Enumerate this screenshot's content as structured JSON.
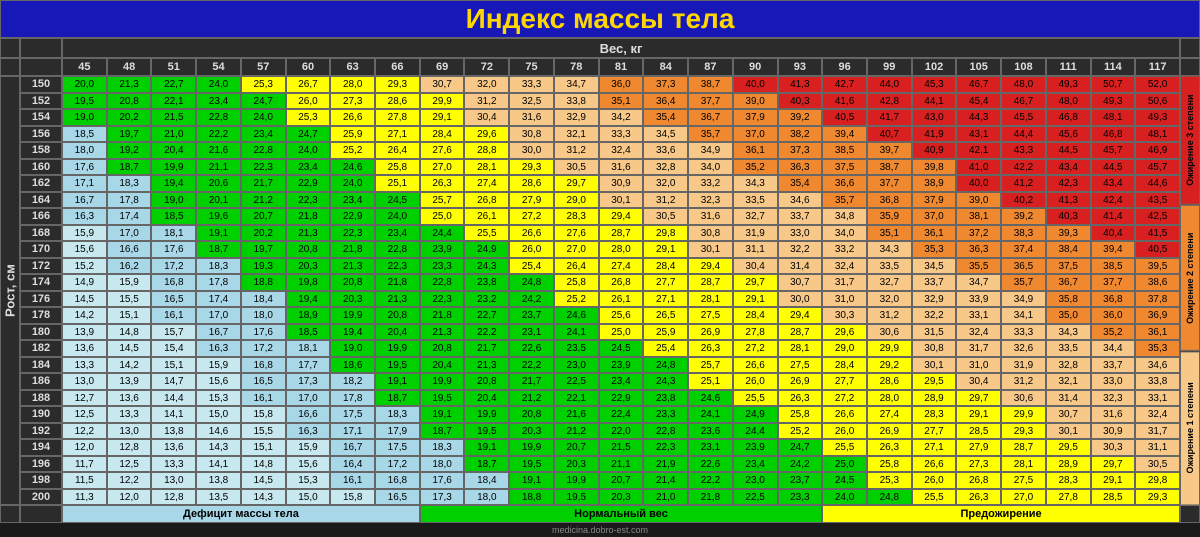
{
  "title": "Индекс массы тела",
  "xaxis_label": "Вес, кг",
  "yaxis_label": "Рост, см",
  "footer": "medicina.dobro-est.com",
  "weights": [
    45,
    48,
    51,
    54,
    57,
    60,
    63,
    66,
    69,
    72,
    75,
    78,
    81,
    84,
    87,
    90,
    93,
    96,
    99,
    102,
    105,
    108,
    111,
    114,
    117
  ],
  "heights": [
    150,
    152,
    154,
    156,
    158,
    160,
    162,
    164,
    166,
    168,
    170,
    172,
    174,
    176,
    178,
    180,
    182,
    184,
    186,
    188,
    190,
    192,
    194,
    196,
    198,
    200
  ],
  "legend": {
    "deficit": "Дефицит массы тела",
    "normal": "Нормальный вес",
    "pre": "Предожирение"
  },
  "side_labels": {
    "ob3": "Ожирение 3 степени",
    "ob2": "Ожирение 2 степени",
    "ob1": "Ожирение 1 степени"
  },
  "colors": {
    "deficit_lt": "#c8e8f0",
    "deficit": "#a8d8e8",
    "normal": "#00d000",
    "pre": "#ffff00",
    "ob1": "#f8c888",
    "ob2": "#f08830",
    "ob3": "#d82020"
  },
  "thresholds": {
    "deficit_lt": 16,
    "deficit": 18.5,
    "normal": 25,
    "pre": 30,
    "ob1": 35,
    "ob2": 40
  },
  "legend_colors": {
    "deficit": "#a8d8e8",
    "normal": "#00d000",
    "pre": "#ffff00"
  },
  "side_colors": {
    "ob1": "#f8c888",
    "ob2": "#f08830",
    "ob3": "#d82020"
  }
}
